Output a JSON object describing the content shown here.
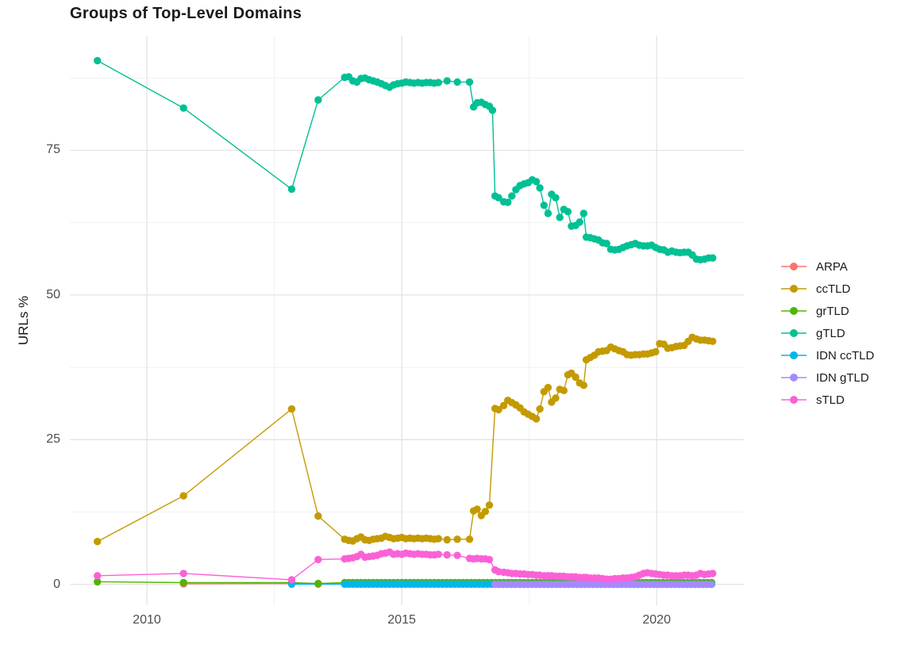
{
  "title": "Groups of Top-Level Domains",
  "y_axis": {
    "label": "URLs %",
    "tick_labels": [
      "0",
      "25",
      "50",
      "75"
    ]
  },
  "x_axis": {
    "tick_labels": [
      "2010",
      "2015",
      "2020"
    ]
  },
  "legend": {
    "position": "right",
    "items": [
      "ARPA",
      "ccTLD",
      "grTLD",
      "gTLD",
      "IDN ccTLD",
      "IDN gTLD",
      "sTLD"
    ]
  },
  "colors": {
    "grid_major": "#e3e3e3",
    "grid_minor": "#f1f1f1",
    "tick_text": "#4d4d4d",
    "title_text": "#1a1a1a"
  },
  "chart_data": {
    "type": "line",
    "title": "Groups of Top-Level Domains",
    "xlabel": "",
    "ylabel": "URLs %",
    "grid": true,
    "legend_position": "right",
    "x_ticks": [
      2010,
      2015,
      2020
    ],
    "x_minor_ticks": [
      2012.5,
      2017.5
    ],
    "y_ticks": [
      0,
      25,
      50,
      75
    ],
    "y_minor_ticks": [
      12.5,
      37.5,
      62.5,
      87.5
    ],
    "x_range": [
      2008.49,
      2021.71
    ],
    "y_range": [
      -3.6,
      94.8
    ],
    "series": [
      {
        "name": "ARPA",
        "color": "#F8766D",
        "points": [
          [
            2010.72,
            0.1
          ],
          [
            2012.84,
            0.15
          ],
          [
            2013.36,
            0.05
          ]
        ],
        "flat": {
          "from": 2013.88,
          "to": 2021.1,
          "step": 0.08,
          "value": 0.1
        }
      },
      {
        "name": "ccTLD",
        "color": "#C49A00",
        "points": [
          [
            2009.03,
            7.4
          ],
          [
            2010.72,
            15.3
          ],
          [
            2012.84,
            30.3
          ],
          [
            2013.36,
            11.8
          ],
          [
            2013.88,
            7.8
          ],
          [
            2013.96,
            7.6
          ],
          [
            2014.04,
            7.5
          ],
          [
            2014.12,
            7.9
          ],
          [
            2014.2,
            8.2
          ],
          [
            2014.28,
            7.7
          ],
          [
            2014.36,
            7.6
          ],
          [
            2014.44,
            7.8
          ],
          [
            2014.52,
            7.9
          ],
          [
            2014.6,
            8.0
          ],
          [
            2014.68,
            8.3
          ],
          [
            2014.76,
            8.1
          ],
          [
            2014.84,
            7.9
          ],
          [
            2014.92,
            8.0
          ],
          [
            2015.0,
            8.1
          ],
          [
            2015.08,
            7.9
          ],
          [
            2015.16,
            8.0
          ],
          [
            2015.24,
            7.9
          ],
          [
            2015.32,
            8.0
          ],
          [
            2015.4,
            7.9
          ],
          [
            2015.48,
            8.0
          ],
          [
            2015.56,
            7.9
          ],
          [
            2015.64,
            7.8
          ],
          [
            2015.72,
            7.9
          ],
          [
            2015.89,
            7.7
          ],
          [
            2016.09,
            7.8
          ],
          [
            2016.33,
            7.8
          ],
          [
            2016.41,
            12.7
          ],
          [
            2016.48,
            13.0
          ],
          [
            2016.56,
            11.9
          ],
          [
            2016.64,
            12.6
          ],
          [
            2016.72,
            13.7
          ],
          [
            2016.83,
            30.4
          ],
          [
            2016.9,
            30.2
          ],
          [
            2017.0,
            30.9
          ],
          [
            2017.08,
            31.8
          ],
          [
            2017.16,
            31.4
          ],
          [
            2017.24,
            31.0
          ],
          [
            2017.32,
            30.5
          ],
          [
            2017.4,
            29.8
          ],
          [
            2017.48,
            29.4
          ],
          [
            2017.56,
            29.0
          ],
          [
            2017.64,
            28.6
          ],
          [
            2017.71,
            30.3
          ],
          [
            2017.79,
            33.3
          ],
          [
            2017.87,
            34.0
          ],
          [
            2017.94,
            31.5
          ],
          [
            2018.02,
            32.2
          ],
          [
            2018.1,
            33.7
          ],
          [
            2018.18,
            33.5
          ],
          [
            2018.26,
            36.2
          ],
          [
            2018.33,
            36.5
          ],
          [
            2018.41,
            35.8
          ],
          [
            2018.49,
            34.8
          ],
          [
            2018.57,
            34.4
          ],
          [
            2018.62,
            38.8
          ],
          [
            2018.7,
            39.2
          ],
          [
            2018.78,
            39.6
          ],
          [
            2018.86,
            40.2
          ],
          [
            2018.94,
            40.3
          ],
          [
            2019.02,
            40.4
          ],
          [
            2019.1,
            41.0
          ],
          [
            2019.18,
            40.7
          ],
          [
            2019.26,
            40.4
          ],
          [
            2019.34,
            40.2
          ],
          [
            2019.42,
            39.7
          ],
          [
            2019.5,
            39.6
          ],
          [
            2019.58,
            39.7
          ],
          [
            2019.66,
            39.7
          ],
          [
            2019.74,
            39.8
          ],
          [
            2019.82,
            39.8
          ],
          [
            2019.9,
            40.0
          ],
          [
            2019.98,
            40.2
          ],
          [
            2020.06,
            41.6
          ],
          [
            2020.14,
            41.5
          ],
          [
            2020.22,
            40.8
          ],
          [
            2020.3,
            40.9
          ],
          [
            2020.38,
            41.1
          ],
          [
            2020.46,
            41.2
          ],
          [
            2020.54,
            41.3
          ],
          [
            2020.62,
            42.0
          ],
          [
            2020.7,
            42.7
          ],
          [
            2020.78,
            42.4
          ],
          [
            2020.86,
            42.2
          ],
          [
            2020.94,
            42.2
          ],
          [
            2021.02,
            42.1
          ],
          [
            2021.1,
            42.0
          ]
        ]
      },
      {
        "name": "grTLD",
        "color": "#53B400",
        "points": [
          [
            2009.03,
            0.45
          ],
          [
            2010.72,
            0.3
          ],
          [
            2012.84,
            0.3
          ],
          [
            2013.36,
            0.15
          ]
        ],
        "flat": {
          "from": 2013.88,
          "to": 2021.1,
          "step": 0.08,
          "value": 0.32
        }
      },
      {
        "name": "gTLD",
        "color": "#00C094",
        "points": [
          [
            2009.03,
            90.5
          ],
          [
            2010.72,
            82.3
          ],
          [
            2012.84,
            68.3
          ],
          [
            2013.36,
            83.7
          ],
          [
            2013.88,
            87.6
          ],
          [
            2013.96,
            87.7
          ],
          [
            2014.04,
            87.0
          ],
          [
            2014.12,
            86.8
          ],
          [
            2014.2,
            87.4
          ],
          [
            2014.28,
            87.5
          ],
          [
            2014.36,
            87.2
          ],
          [
            2014.44,
            87.0
          ],
          [
            2014.52,
            86.8
          ],
          [
            2014.6,
            86.5
          ],
          [
            2014.68,
            86.2
          ],
          [
            2014.76,
            85.9
          ],
          [
            2014.84,
            86.3
          ],
          [
            2014.92,
            86.5
          ],
          [
            2015.0,
            86.6
          ],
          [
            2015.08,
            86.8
          ],
          [
            2015.16,
            86.7
          ],
          [
            2015.24,
            86.6
          ],
          [
            2015.32,
            86.7
          ],
          [
            2015.4,
            86.6
          ],
          [
            2015.48,
            86.7
          ],
          [
            2015.56,
            86.7
          ],
          [
            2015.64,
            86.6
          ],
          [
            2015.72,
            86.7
          ],
          [
            2015.89,
            87.0
          ],
          [
            2016.09,
            86.8
          ],
          [
            2016.33,
            86.8
          ],
          [
            2016.41,
            82.5
          ],
          [
            2016.48,
            83.2
          ],
          [
            2016.56,
            83.3
          ],
          [
            2016.64,
            82.9
          ],
          [
            2016.72,
            82.6
          ],
          [
            2016.78,
            81.9
          ],
          [
            2016.83,
            67.1
          ],
          [
            2016.9,
            66.8
          ],
          [
            2017.0,
            66.1
          ],
          [
            2017.08,
            66.0
          ],
          [
            2017.16,
            67.1
          ],
          [
            2017.24,
            68.2
          ],
          [
            2017.32,
            68.9
          ],
          [
            2017.4,
            69.2
          ],
          [
            2017.48,
            69.4
          ],
          [
            2017.56,
            69.9
          ],
          [
            2017.64,
            69.6
          ],
          [
            2017.71,
            68.5
          ],
          [
            2017.79,
            65.5
          ],
          [
            2017.87,
            64.1
          ],
          [
            2017.94,
            67.4
          ],
          [
            2018.02,
            66.8
          ],
          [
            2018.1,
            63.4
          ],
          [
            2018.18,
            64.8
          ],
          [
            2018.26,
            64.4
          ],
          [
            2018.33,
            61.9
          ],
          [
            2018.41,
            62.0
          ],
          [
            2018.49,
            62.6
          ],
          [
            2018.57,
            64.1
          ],
          [
            2018.62,
            60.0
          ],
          [
            2018.7,
            59.9
          ],
          [
            2018.78,
            59.7
          ],
          [
            2018.86,
            59.5
          ],
          [
            2018.94,
            59.0
          ],
          [
            2019.02,
            58.9
          ],
          [
            2019.1,
            57.9
          ],
          [
            2019.18,
            57.8
          ],
          [
            2019.26,
            57.9
          ],
          [
            2019.34,
            58.2
          ],
          [
            2019.42,
            58.5
          ],
          [
            2019.5,
            58.7
          ],
          [
            2019.58,
            58.9
          ],
          [
            2019.66,
            58.6
          ],
          [
            2019.74,
            58.5
          ],
          [
            2019.82,
            58.5
          ],
          [
            2019.9,
            58.6
          ],
          [
            2019.98,
            58.2
          ],
          [
            2020.06,
            57.9
          ],
          [
            2020.14,
            57.8
          ],
          [
            2020.22,
            57.4
          ],
          [
            2020.3,
            57.6
          ],
          [
            2020.38,
            57.4
          ],
          [
            2020.46,
            57.3
          ],
          [
            2020.54,
            57.4
          ],
          [
            2020.62,
            57.4
          ],
          [
            2020.7,
            56.9
          ],
          [
            2020.78,
            56.2
          ],
          [
            2020.86,
            56.1
          ],
          [
            2020.94,
            56.2
          ],
          [
            2021.02,
            56.4
          ],
          [
            2021.1,
            56.4
          ]
        ]
      },
      {
        "name": "IDN ccTLD",
        "color": "#00B6EB",
        "points": [
          [
            2012.84,
            0.05
          ]
        ],
        "flat": {
          "from": 2013.88,
          "to": 2021.1,
          "step": 0.08,
          "value": 0.05
        }
      },
      {
        "name": "IDN gTLD",
        "color": "#A58AFF",
        "points": [],
        "flat": {
          "from": 2016.83,
          "to": 2021.1,
          "step": 0.08,
          "value": 0.0
        }
      },
      {
        "name": "sTLD",
        "color": "#FB61D7",
        "points": [
          [
            2009.03,
            1.5
          ],
          [
            2010.72,
            1.9
          ],
          [
            2012.84,
            0.8
          ],
          [
            2013.36,
            4.3
          ],
          [
            2013.88,
            4.4
          ],
          [
            2013.96,
            4.5
          ],
          [
            2014.04,
            4.6
          ],
          [
            2014.12,
            4.8
          ],
          [
            2014.2,
            5.2
          ],
          [
            2014.28,
            4.7
          ],
          [
            2014.36,
            4.8
          ],
          [
            2014.44,
            4.9
          ],
          [
            2014.52,
            5.0
          ],
          [
            2014.6,
            5.3
          ],
          [
            2014.68,
            5.4
          ],
          [
            2014.76,
            5.6
          ],
          [
            2014.84,
            5.2
          ],
          [
            2014.92,
            5.3
          ],
          [
            2015.0,
            5.2
          ],
          [
            2015.08,
            5.4
          ],
          [
            2015.16,
            5.3
          ],
          [
            2015.24,
            5.2
          ],
          [
            2015.32,
            5.3
          ],
          [
            2015.4,
            5.2
          ],
          [
            2015.48,
            5.2
          ],
          [
            2015.56,
            5.1
          ],
          [
            2015.64,
            5.1
          ],
          [
            2015.72,
            5.2
          ],
          [
            2015.89,
            5.1
          ],
          [
            2016.09,
            5.0
          ],
          [
            2016.33,
            4.5
          ],
          [
            2016.41,
            4.4
          ],
          [
            2016.48,
            4.5
          ],
          [
            2016.56,
            4.4
          ],
          [
            2016.64,
            4.4
          ],
          [
            2016.72,
            4.3
          ],
          [
            2016.83,
            2.5
          ],
          [
            2016.9,
            2.2
          ],
          [
            2017.0,
            2.1
          ],
          [
            2017.08,
            2.0
          ],
          [
            2017.16,
            1.9
          ],
          [
            2017.24,
            1.9
          ],
          [
            2017.32,
            1.8
          ],
          [
            2017.4,
            1.8
          ],
          [
            2017.48,
            1.7
          ],
          [
            2017.56,
            1.7
          ],
          [
            2017.64,
            1.6
          ],
          [
            2017.71,
            1.6
          ],
          [
            2017.79,
            1.5
          ],
          [
            2017.87,
            1.5
          ],
          [
            2017.94,
            1.5
          ],
          [
            2018.02,
            1.4
          ],
          [
            2018.1,
            1.4
          ],
          [
            2018.18,
            1.4
          ],
          [
            2018.26,
            1.3
          ],
          [
            2018.33,
            1.3
          ],
          [
            2018.41,
            1.3
          ],
          [
            2018.49,
            1.2
          ],
          [
            2018.57,
            1.2
          ],
          [
            2018.62,
            1.2
          ],
          [
            2018.7,
            1.1
          ],
          [
            2018.78,
            1.1
          ],
          [
            2018.86,
            1.1
          ],
          [
            2018.94,
            1.0
          ],
          [
            2019.02,
            0.9
          ],
          [
            2019.1,
            0.9
          ],
          [
            2019.18,
            1.0
          ],
          [
            2019.26,
            1.0
          ],
          [
            2019.34,
            1.1
          ],
          [
            2019.42,
            1.1
          ],
          [
            2019.5,
            1.2
          ],
          [
            2019.58,
            1.3
          ],
          [
            2019.66,
            1.6
          ],
          [
            2019.74,
            1.9
          ],
          [
            2019.82,
            2.0
          ],
          [
            2019.9,
            1.9
          ],
          [
            2019.98,
            1.8
          ],
          [
            2020.06,
            1.7
          ],
          [
            2020.14,
            1.6
          ],
          [
            2020.22,
            1.6
          ],
          [
            2020.3,
            1.5
          ],
          [
            2020.38,
            1.5
          ],
          [
            2020.46,
            1.5
          ],
          [
            2020.54,
            1.6
          ],
          [
            2020.62,
            1.6
          ],
          [
            2020.7,
            1.5
          ],
          [
            2020.78,
            1.6
          ],
          [
            2020.86,
            1.9
          ],
          [
            2020.94,
            1.7
          ],
          [
            2021.02,
            1.8
          ],
          [
            2021.1,
            1.9
          ]
        ]
      }
    ]
  }
}
